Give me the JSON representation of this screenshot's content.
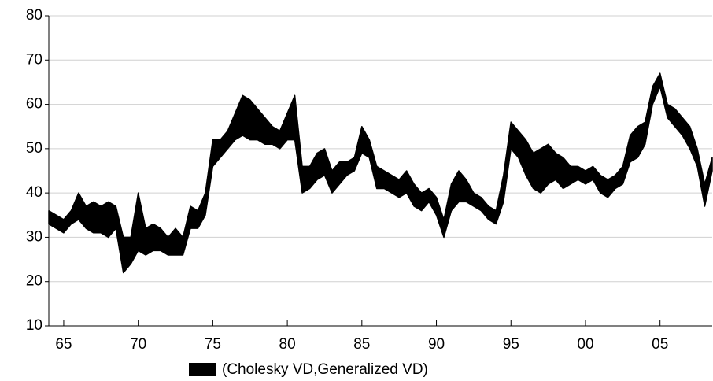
{
  "chart_data": {
    "type": "band",
    "x": [
      1964,
      1964.5,
      1965,
      1965.5,
      1966,
      1966.5,
      1967,
      1967.5,
      1968,
      1968.5,
      1969,
      1969.5,
      1970,
      1970.5,
      1971,
      1971.5,
      1972,
      1972.5,
      1973,
      1973.5,
      1974,
      1974.5,
      1975,
      1975.5,
      1976,
      1976.5,
      1977,
      1977.5,
      1978,
      1978.5,
      1979,
      1979.5,
      1980,
      1980.5,
      1981,
      1981.5,
      1982,
      1982.5,
      1983,
      1983.5,
      1984,
      1984.5,
      1985,
      1985.5,
      1986,
      1986.5,
      1987,
      1987.5,
      1988,
      1988.5,
      1989,
      1989.5,
      1990,
      1990.5,
      1991,
      1991.5,
      1992,
      1992.5,
      1993,
      1993.5,
      1994,
      1994.5,
      1995,
      1995.5,
      1996,
      1996.5,
      1997,
      1997.5,
      1998,
      1998.5,
      1999,
      1999.5,
      2000,
      2000.5,
      2001,
      2001.5,
      2002,
      2002.5,
      2003,
      2003.5,
      2004,
      2004.5,
      2005,
      2005.5,
      2006,
      2006.5,
      2007,
      2007.5,
      2008,
      2008.5
    ],
    "series": [
      {
        "name": "(Cholesky VD,Generalized VD)",
        "color": "#000000",
        "low": [
          33,
          32,
          31,
          33,
          34,
          32,
          31,
          31,
          30,
          32,
          22,
          24,
          27,
          26,
          27,
          27,
          26,
          26,
          26,
          32,
          32,
          35,
          46,
          48,
          50,
          52,
          53,
          52,
          52,
          51,
          51,
          50,
          52,
          52,
          40,
          41,
          43,
          44,
          40,
          42,
          44,
          45,
          49,
          48,
          41,
          41,
          40,
          39,
          40,
          37,
          36,
          38,
          35,
          30,
          36,
          38,
          38,
          37,
          36,
          34,
          33,
          38,
          50,
          48,
          44,
          41,
          40,
          42,
          43,
          41,
          42,
          43,
          42,
          43,
          40,
          39,
          41,
          42,
          47,
          48,
          51,
          60,
          64,
          57,
          55,
          53,
          50,
          46,
          37,
          45
        ],
        "high": [
          36,
          35,
          34,
          36,
          40,
          37,
          38,
          37,
          38,
          37,
          30,
          30,
          40,
          32,
          33,
          32,
          30,
          32,
          30,
          37,
          36,
          40,
          52,
          52,
          54,
          58,
          62,
          61,
          59,
          57,
          55,
          54,
          58,
          62,
          46,
          46,
          49,
          50,
          45,
          47,
          47,
          48,
          55,
          52,
          46,
          45,
          44,
          43,
          45,
          42,
          40,
          41,
          39,
          34,
          42,
          45,
          43,
          40,
          39,
          37,
          36,
          44,
          56,
          54,
          52,
          49,
          50,
          51,
          49,
          48,
          46,
          46,
          45,
          46,
          44,
          43,
          44,
          46,
          53,
          55,
          56,
          64,
          67,
          60,
          59,
          57,
          55,
          50,
          42,
          48
        ]
      }
    ],
    "xlim": [
      1964,
      2008.5
    ],
    "ylim": [
      10,
      80
    ],
    "yticks": [
      10,
      20,
      30,
      40,
      50,
      60,
      70,
      80
    ],
    "xticks": [
      {
        "value": 1965,
        "label": "65"
      },
      {
        "value": 1970,
        "label": "70"
      },
      {
        "value": 1975,
        "label": "75"
      },
      {
        "value": 1980,
        "label": "80"
      },
      {
        "value": 1985,
        "label": "85"
      },
      {
        "value": 1990,
        "label": "90"
      },
      {
        "value": 1995,
        "label": "95"
      },
      {
        "value": 2000,
        "label": "00"
      },
      {
        "value": 2005,
        "label": "05"
      }
    ],
    "grid": true,
    "legend": "bottom"
  }
}
